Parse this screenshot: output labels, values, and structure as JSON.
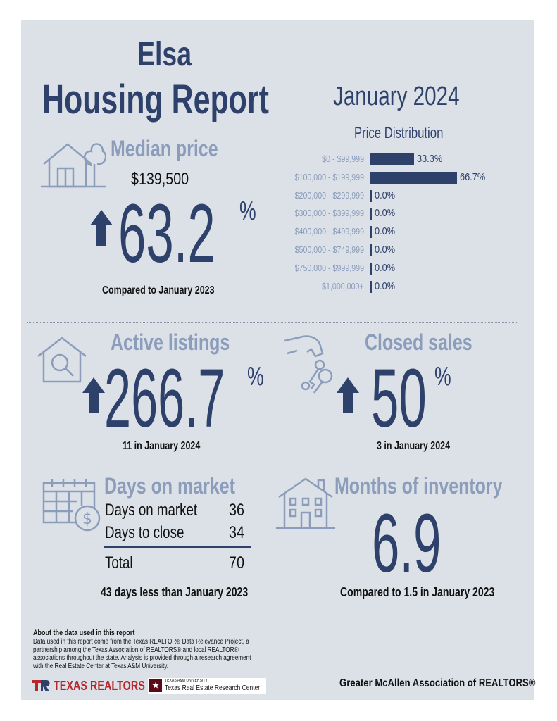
{
  "header": {
    "city": "Elsa",
    "report_title": "Housing Report",
    "period": "January 2024"
  },
  "median_price": {
    "title": "Median price",
    "value": "$139,500",
    "change": "63.2",
    "unit": "%",
    "caption": "Compared to January 2023",
    "direction": "up"
  },
  "price_distribution": {
    "title": "Price Distribution",
    "chart_data": {
      "type": "bar",
      "categories": [
        "$0 - $99,999",
        "$100,000 - $199,999",
        "$200,000 - $299,999",
        "$300,000 - $399,999",
        "$400,000 - $499,999",
        "$500,000 - $749,999",
        "$750,000 - $999,999",
        "$1,000,000+"
      ],
      "values": [
        33.3,
        66.7,
        0.0,
        0.0,
        0.0,
        0.0,
        0.0,
        0.0
      ],
      "value_labels": [
        "33.3%",
        "66.7%",
        "0.0%",
        "0.0%",
        "0.0%",
        "0.0%",
        "0.0%",
        "0.0%"
      ],
      "title": "Price Distribution",
      "orientation": "horizontal",
      "bar_color": "#2e416b"
    }
  },
  "active_listings": {
    "title": "Active listings",
    "change": "266.7",
    "unit": "%",
    "caption": "11 in January 2024",
    "direction": "up"
  },
  "closed_sales": {
    "title": "Closed sales",
    "change": "50",
    "unit": "%",
    "caption": "3 in January 2024",
    "direction": "up"
  },
  "days_on_market": {
    "title": "Days on market",
    "rows": [
      {
        "label": "Days on market",
        "value": "36"
      },
      {
        "label": "Days to close",
        "value": "34"
      }
    ],
    "total_label": "Total",
    "total_value": "70",
    "caption": "43 days less than January 2023"
  },
  "months_of_inventory": {
    "title": "Months of inventory",
    "value": "6.9",
    "caption": "Compared to 1.5 in January 2023"
  },
  "footer": {
    "about_title": "About the data used in this report",
    "about_lines": [
      "Data used in this report come from the Texas REALTOR® Data Relevance Project, a",
      "partnership among the Texas Association of REALTORS® and local REALTOR®",
      "associations throughout the state. Analysis is provided through a research agreement",
      "with the Real Estate Center at Texas A&M University."
    ],
    "texas_realtors_logo": "TEXAS REALTORS",
    "tamu_small": "TEXAS A&M UNIVERSITY",
    "tamu_center": "Texas Real Estate Research Center",
    "association": "Greater McAllen Association of REALTORS®"
  },
  "colors": {
    "navy": "#2e416b",
    "light_blue": "#8b9dbb",
    "panel": "#dce1e8",
    "texas_red": "#b6272c"
  },
  "icons": [
    "house-tree-icon",
    "house-search-icon",
    "hand-keys-icon",
    "calendar-dollar-icon",
    "apartment-building-icon"
  ]
}
